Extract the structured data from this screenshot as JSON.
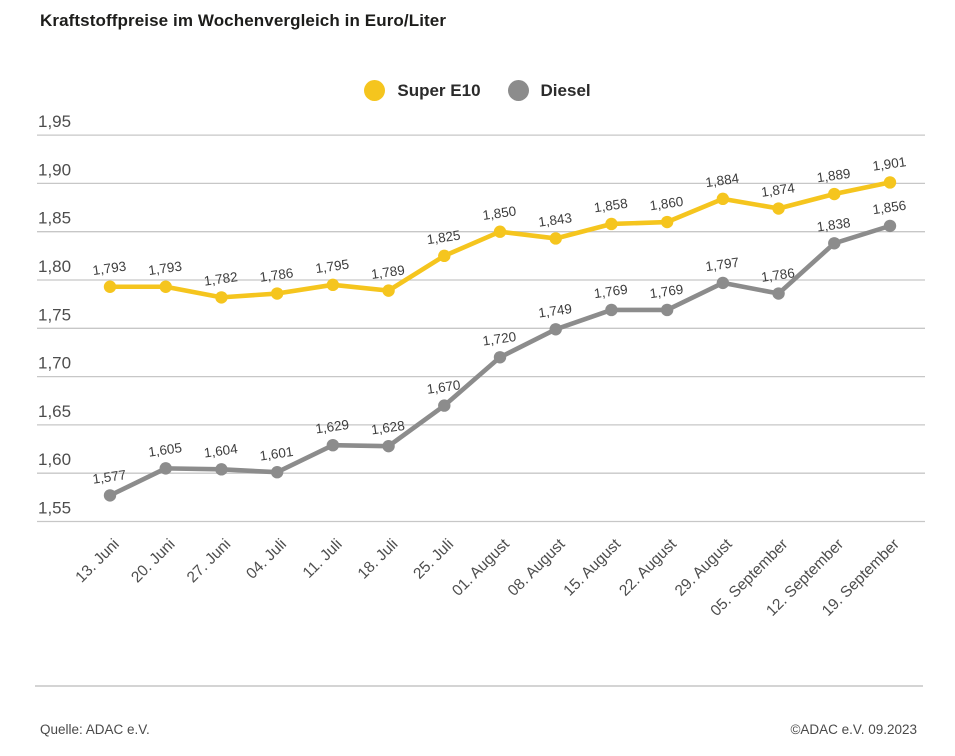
{
  "title": "Kraftstoffpreise im Wochenvergleich in Euro/Liter",
  "legend": {
    "items": [
      {
        "label": "Super E10",
        "color": "#F5C51E"
      },
      {
        "label": "Diesel",
        "color": "#8C8C8C"
      }
    ]
  },
  "chart_data": {
    "type": "line",
    "title": "Kraftstoffpreise im Wochenvergleich in Euro/Liter",
    "categories": [
      "13. Juni",
      "20. Juni",
      "27. Juni",
      "04. Juli",
      "11. Juli",
      "18. Juli",
      "25. Juli",
      "01. August",
      "08. August",
      "15. August",
      "22. August",
      "29. August",
      "05. September",
      "12. September",
      "19. September"
    ],
    "series": [
      {
        "name": "Super E10",
        "color": "#F5C51E",
        "values": [
          1.793,
          1.793,
          1.782,
          1.786,
          1.795,
          1.789,
          1.825,
          1.85,
          1.843,
          1.858,
          1.86,
          1.884,
          1.874,
          1.889,
          1.901
        ]
      },
      {
        "name": "Diesel",
        "color": "#8C8C8C",
        "values": [
          1.577,
          1.605,
          1.604,
          1.601,
          1.629,
          1.628,
          1.67,
          1.72,
          1.749,
          1.769,
          1.769,
          1.797,
          1.786,
          1.838,
          1.856
        ]
      }
    ],
    "xlabel": "",
    "ylabel": "Euro/Liter",
    "ylim": [
      1.55,
      1.95
    ],
    "ytick_step": 0.05,
    "grid": true,
    "legend_position": "top-center",
    "decimal_separator": ",",
    "colors": {
      "gridline": "#C7C7C7",
      "tick_label": "#4d4d4d",
      "value_label": "#3d3d3d"
    }
  },
  "footer": {
    "source_left": "Quelle: ADAC e.V.",
    "credit_right": "©ADAC e.V. 09.2023"
  }
}
